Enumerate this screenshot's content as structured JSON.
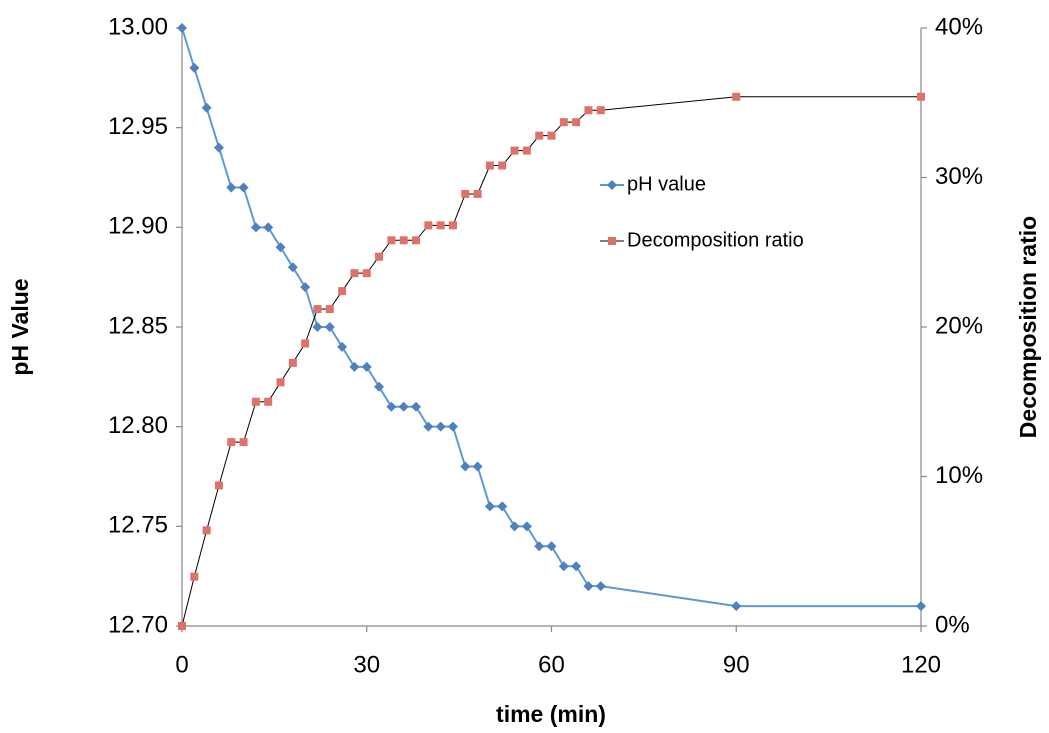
{
  "chart_data": {
    "type": "line",
    "x_label": "time (min)",
    "y_label": "pH Value",
    "y2_label": "Decomposition ratio",
    "x": [
      0,
      2,
      4,
      6,
      8,
      10,
      12,
      14,
      16,
      18,
      20,
      22,
      24,
      26,
      28,
      30,
      32,
      34,
      36,
      38,
      40,
      42,
      44,
      46,
      48,
      50,
      52,
      54,
      56,
      58,
      60,
      62,
      64,
      66,
      68,
      90,
      120
    ],
    "series": [
      {
        "name": "pH value",
        "color": "#5b9bd5",
        "marker_color": "#4f81bd",
        "marker": "diamond",
        "values": [
          13.0,
          12.98,
          12.96,
          12.94,
          12.92,
          12.92,
          12.9,
          12.9,
          12.89,
          12.88,
          12.87,
          12.85,
          12.85,
          12.84,
          12.83,
          12.83,
          12.82,
          12.81,
          12.81,
          12.81,
          12.8,
          12.8,
          12.8,
          12.78,
          12.78,
          12.76,
          12.76,
          12.75,
          12.75,
          12.74,
          12.74,
          12.73,
          12.73,
          12.72,
          12.72,
          12.71,
          12.71
        ]
      },
      {
        "name": "Decomposition ratio",
        "color": "#000000",
        "marker_color": "#e0706a",
        "marker": "square",
        "axis": "y2",
        "values": [
          0,
          3.3,
          6.4,
          9.4,
          12.3,
          12.3,
          15.0,
          15.0,
          16.3,
          17.6,
          18.9,
          21.2,
          21.2,
          22.4,
          23.6,
          23.6,
          24.7,
          25.8,
          25.8,
          25.8,
          26.8,
          26.8,
          26.8,
          28.9,
          28.9,
          30.8,
          30.8,
          31.8,
          31.8,
          32.8,
          32.8,
          33.7,
          33.7,
          34.5,
          34.5,
          35.4,
          35.4
        ]
      }
    ],
    "xlim": [
      0,
      120
    ],
    "xticks": [
      0,
      30,
      60,
      90,
      120
    ],
    "ylim": [
      12.7,
      13.0
    ],
    "yticks": [
      {
        "value": 12.7,
        "label": "12.70"
      },
      {
        "value": 12.75,
        "label": "12.75"
      },
      {
        "value": 12.8,
        "label": "12.80"
      },
      {
        "value": 12.85,
        "label": "12.85"
      },
      {
        "value": 12.9,
        "label": "12.90"
      },
      {
        "value": 12.95,
        "label": "12.95"
      },
      {
        "value": 13.0,
        "label": "13.00"
      }
    ],
    "y2lim": [
      0,
      40
    ],
    "y2ticks": [
      {
        "value": 0,
        "label": "0%"
      },
      {
        "value": 10,
        "label": "10%"
      },
      {
        "value": 20,
        "label": "20%"
      },
      {
        "value": 30,
        "label": "30%"
      },
      {
        "value": 40,
        "label": "40%"
      }
    ],
    "grid": false
  }
}
